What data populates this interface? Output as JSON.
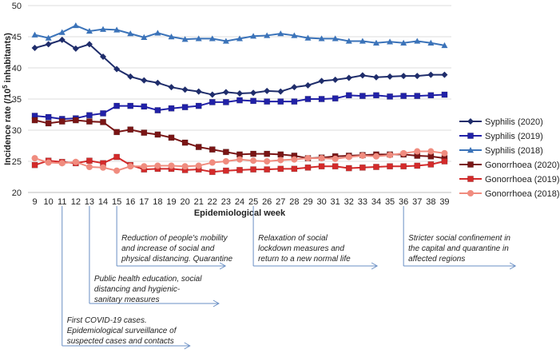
{
  "chart_data": {
    "type": "line",
    "title": "",
    "xlabel": "Epidemiological week",
    "ylabel_prefix": "Incidence rate (/10",
    "ylabel_sup": "5",
    "ylabel_suffix": " inhabitants)",
    "ylim": [
      20,
      50
    ],
    "yticks": [
      20,
      25,
      30,
      35,
      40,
      45,
      50
    ],
    "x": [
      9,
      10,
      11,
      12,
      13,
      14,
      15,
      16,
      17,
      18,
      19,
      20,
      21,
      22,
      23,
      24,
      25,
      26,
      27,
      28,
      29,
      30,
      31,
      32,
      33,
      34,
      35,
      36,
      37,
      38,
      39
    ],
    "series": [
      {
        "name": "Syphilis (2020)",
        "color": "#1f2d6b",
        "marker": "diamond",
        "values": [
          43.2,
          43.8,
          44.5,
          43.1,
          43.8,
          41.8,
          39.8,
          38.6,
          38.0,
          37.6,
          36.9,
          36.5,
          36.2,
          35.7,
          36.1,
          35.9,
          36.0,
          36.3,
          36.2,
          36.9,
          37.2,
          37.9,
          38.1,
          38.4,
          38.8,
          38.5,
          38.6,
          38.7,
          38.7,
          38.9,
          38.9
        ]
      },
      {
        "name": "Syphilis (2019)",
        "color": "#2121a8",
        "marker": "square",
        "values": [
          32.3,
          32.1,
          31.8,
          31.9,
          32.4,
          32.7,
          33.9,
          33.9,
          33.8,
          33.2,
          33.5,
          33.7,
          33.9,
          34.5,
          34.5,
          34.8,
          34.7,
          34.6,
          34.6,
          34.6,
          35.0,
          35.0,
          35.1,
          35.6,
          35.5,
          35.6,
          35.4,
          35.5,
          35.5,
          35.6,
          35.7
        ]
      },
      {
        "name": "Syphilis (2018)",
        "color": "#3b73b9",
        "marker": "triangle",
        "values": [
          45.3,
          44.8,
          45.7,
          46.8,
          45.9,
          46.2,
          46.1,
          45.5,
          44.9,
          45.6,
          45.0,
          44.6,
          44.7,
          44.7,
          44.3,
          44.7,
          45.1,
          45.2,
          45.5,
          45.2,
          44.8,
          44.7,
          44.7,
          44.3,
          44.3,
          44.0,
          44.2,
          44.0,
          44.3,
          44.0,
          43.6
        ]
      },
      {
        "name": "Gonorrhoea (2020)",
        "color": "#7a1515",
        "marker": "square",
        "values": [
          31.6,
          31.1,
          31.4,
          31.6,
          31.4,
          31.3,
          29.7,
          30.1,
          29.6,
          29.3,
          28.8,
          28.0,
          27.3,
          26.9,
          26.5,
          26.1,
          26.2,
          26.2,
          26.1,
          25.9,
          25.5,
          25.6,
          25.8,
          25.9,
          26.0,
          26.1,
          26.1,
          26.1,
          25.9,
          25.8,
          25.5
        ]
      },
      {
        "name": "Gonorrhoea (2019)",
        "color": "#d42a2a",
        "marker": "square",
        "values": [
          24.4,
          25.1,
          24.9,
          24.7,
          25.1,
          24.7,
          25.7,
          24.4,
          23.7,
          23.8,
          23.8,
          23.6,
          23.7,
          23.3,
          23.5,
          23.6,
          23.7,
          23.7,
          23.8,
          23.8,
          24.0,
          24.2,
          24.2,
          23.9,
          24.0,
          24.1,
          24.2,
          24.2,
          24.3,
          24.5,
          25.0
        ]
      },
      {
        "name": "Gonorrhoea (2018)",
        "color": "#f08c7f",
        "marker": "circle",
        "values": [
          25.5,
          24.8,
          24.7,
          24.9,
          24.1,
          24.0,
          23.5,
          24.2,
          24.2,
          24.3,
          24.3,
          24.2,
          24.3,
          24.8,
          25.0,
          25.3,
          25.1,
          25.0,
          25.2,
          25.3,
          25.5,
          25.5,
          25.4,
          25.7,
          25.9,
          25.8,
          26.0,
          26.3,
          26.6,
          26.6,
          26.3
        ]
      }
    ],
    "annotations": [
      {
        "week": 11,
        "text": "First COVID-19 cases.\nEpidemiological surveillance of\nsuspected cases and contacts"
      },
      {
        "week": 13,
        "text": "Public health education, social\ndistancing and hygienic-\nsanitary measures"
      },
      {
        "week": 15,
        "text": "Reduction of people's mobility\nand increase of social and\nphysical distancing. Quarantine"
      },
      {
        "week": 25,
        "text": "Relaxation of social\nlockdown measures and\nreturn to a new normal life"
      },
      {
        "week": 36,
        "text": "Stricter social confinement in\nthe capital and quarantine in\naffected regions"
      }
    ]
  }
}
